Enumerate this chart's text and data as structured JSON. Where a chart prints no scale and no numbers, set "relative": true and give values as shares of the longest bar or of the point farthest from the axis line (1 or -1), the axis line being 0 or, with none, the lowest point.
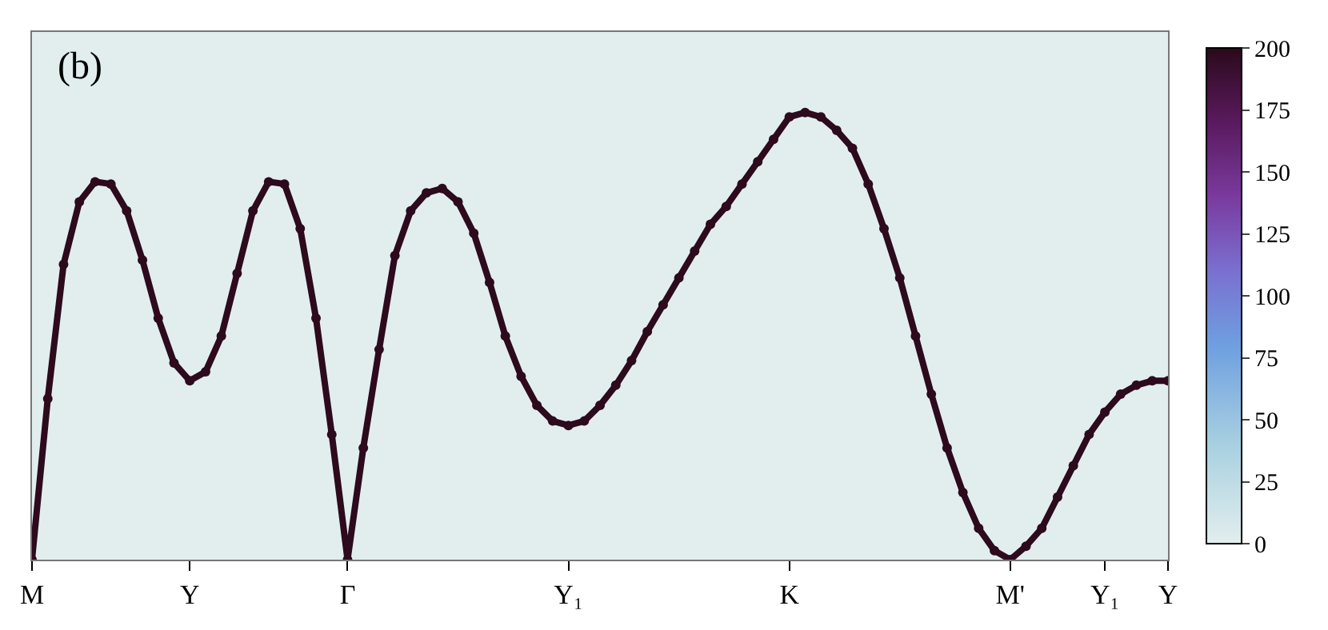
{
  "chart_data": {
    "type": "line",
    "relative": true,
    "marker": "circle",
    "grid": false,
    "annotations": [
      "(b)"
    ],
    "categories": [
      "M",
      null,
      null,
      null,
      null,
      null,
      null,
      null,
      null,
      null,
      "Y",
      null,
      null,
      null,
      null,
      null,
      null,
      null,
      null,
      null,
      "Γ",
      null,
      null,
      null,
      null,
      null,
      null,
      null,
      null,
      null,
      null,
      null,
      null,
      null,
      "Y₁",
      null,
      null,
      null,
      null,
      null,
      null,
      null,
      null,
      null,
      null,
      null,
      null,
      null,
      "K",
      null,
      null,
      null,
      null,
      null,
      null,
      null,
      null,
      null,
      null,
      null,
      null,
      null,
      "M'",
      null,
      null,
      null,
      null,
      null,
      "Y₁",
      null,
      null,
      null,
      "Y"
    ],
    "clim": [
      0,
      200
    ],
    "cticks": [
      0,
      25,
      50,
      75,
      100,
      125,
      150,
      175,
      200
    ],
    "values": [
      0,
      0.36,
      0.66,
      0.8,
      0.845,
      0.84,
      0.78,
      0.67,
      0.54,
      0.44,
      0.4,
      0.42,
      0.5,
      0.64,
      0.78,
      0.845,
      0.84,
      0.74,
      0.54,
      0.28,
      0,
      0.25,
      0.47,
      0.68,
      0.78,
      0.82,
      0.83,
      0.8,
      0.73,
      0.62,
      0.5,
      0.41,
      0.345,
      0.31,
      0.3,
      0.31,
      0.345,
      0.39,
      0.445,
      0.51,
      0.57,
      0.63,
      0.69,
      0.75,
      0.79,
      0.84,
      0.89,
      0.94,
      0.99,
      1,
      0.99,
      0.96,
      0.92,
      0.84,
      0.74,
      0.63,
      0.5,
      0.37,
      0.25,
      0.15,
      0.07,
      0.02,
      0,
      0.03,
      0.07,
      0.14,
      0.21,
      0.28,
      0.33,
      0.37,
      0.39,
      0.4,
      0.4
    ],
    "color": "#2d0a1e"
  }
}
